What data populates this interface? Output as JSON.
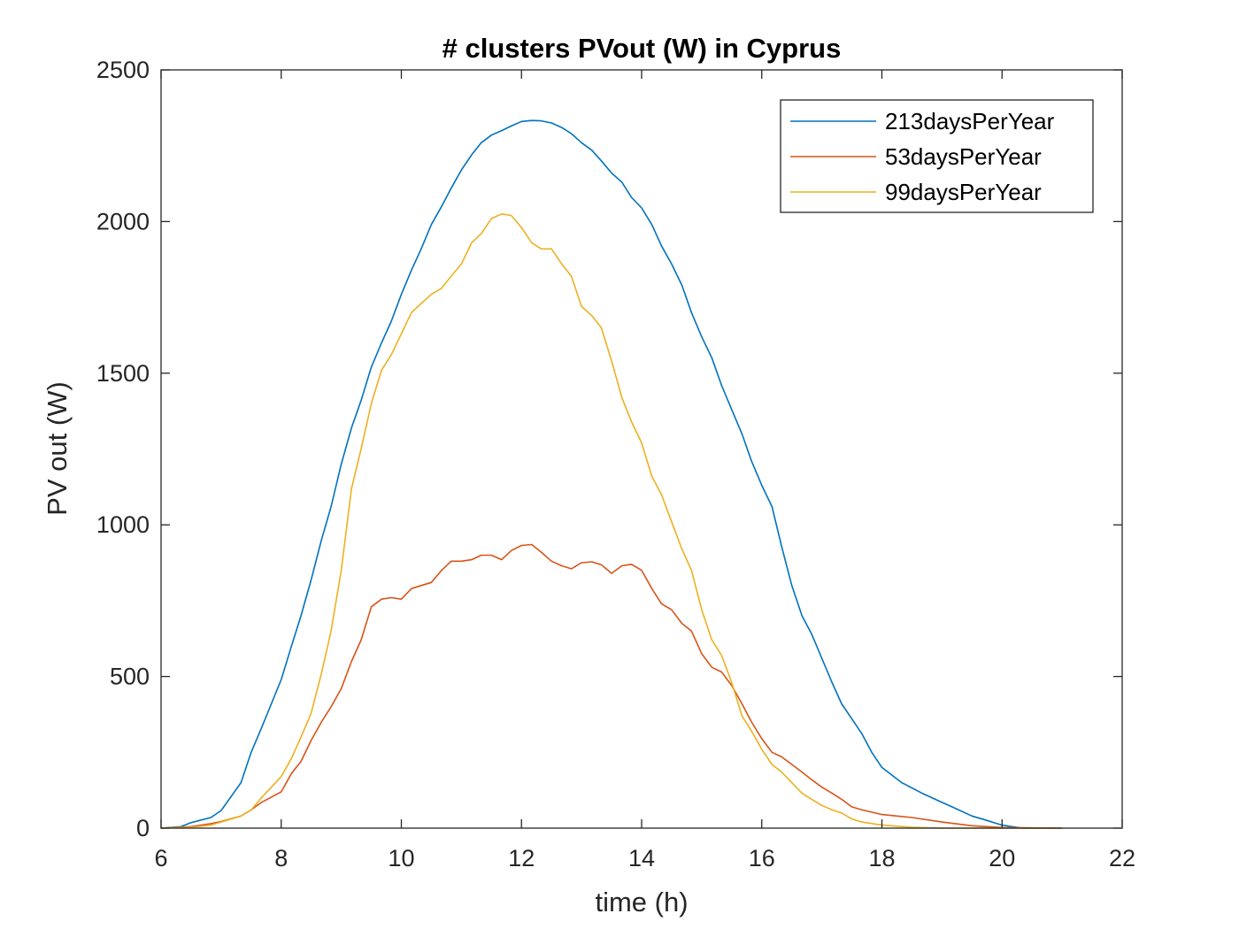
{
  "chart_data": {
    "type": "line",
    "title": "# clusters PVout (W) in Cyprus",
    "xlabel": "time (h)",
    "ylabel": "PV out (W)",
    "xlim": [
      6,
      22
    ],
    "ylim": [
      0,
      2500
    ],
    "xticks": [
      6,
      8,
      10,
      12,
      14,
      16,
      18,
      20,
      22
    ],
    "yticks": [
      0,
      500,
      1000,
      1500,
      2000,
      2500
    ],
    "grid": false,
    "legend_position": "top-right",
    "series": [
      {
        "name": "213daysPerYear",
        "color": "#0072BD",
        "points": [
          [
            6,
            0
          ],
          [
            6.33,
            5
          ],
          [
            6.5,
            18
          ],
          [
            6.83,
            35
          ],
          [
            7,
            58
          ],
          [
            7.33,
            150
          ],
          [
            7.5,
            250
          ],
          [
            7.67,
            330
          ],
          [
            8,
            490
          ],
          [
            8.17,
            600
          ],
          [
            8.33,
            700
          ],
          [
            8.5,
            820
          ],
          [
            8.67,
            950
          ],
          [
            8.83,
            1060
          ],
          [
            9,
            1200
          ],
          [
            9.17,
            1320
          ],
          [
            9.33,
            1410
          ],
          [
            9.5,
            1520
          ],
          [
            9.67,
            1600
          ],
          [
            9.83,
            1670
          ],
          [
            10,
            1760
          ],
          [
            10.17,
            1840
          ],
          [
            10.33,
            1910
          ],
          [
            10.5,
            1990
          ],
          [
            10.67,
            2050
          ],
          [
            10.83,
            2110
          ],
          [
            11,
            2170
          ],
          [
            11.17,
            2220
          ],
          [
            11.33,
            2260
          ],
          [
            11.5,
            2285
          ],
          [
            11.67,
            2300
          ],
          [
            11.83,
            2315
          ],
          [
            12,
            2330
          ],
          [
            12.17,
            2333
          ],
          [
            12.33,
            2332
          ],
          [
            12.5,
            2325
          ],
          [
            12.67,
            2310
          ],
          [
            12.83,
            2290
          ],
          [
            13,
            2260
          ],
          [
            13.17,
            2235
          ],
          [
            13.33,
            2200
          ],
          [
            13.5,
            2160
          ],
          [
            13.67,
            2130
          ],
          [
            13.83,
            2080
          ],
          [
            14,
            2045
          ],
          [
            14.17,
            1990
          ],
          [
            14.33,
            1920
          ],
          [
            14.5,
            1860
          ],
          [
            14.67,
            1790
          ],
          [
            14.83,
            1700
          ],
          [
            15,
            1620
          ],
          [
            15.17,
            1550
          ],
          [
            15.33,
            1460
          ],
          [
            15.5,
            1380
          ],
          [
            15.67,
            1300
          ],
          [
            15.83,
            1210
          ],
          [
            16,
            1130
          ],
          [
            16.17,
            1060
          ],
          [
            16.33,
            930
          ],
          [
            16.5,
            800
          ],
          [
            16.67,
            700
          ],
          [
            16.83,
            640
          ],
          [
            17,
            560
          ],
          [
            17.17,
            480
          ],
          [
            17.33,
            410
          ],
          [
            17.5,
            360
          ],
          [
            17.67,
            310
          ],
          [
            17.83,
            250
          ],
          [
            18,
            200
          ],
          [
            18.33,
            150
          ],
          [
            18.67,
            115
          ],
          [
            19,
            85
          ],
          [
            19.17,
            70
          ],
          [
            19.5,
            40
          ],
          [
            19.67,
            30
          ],
          [
            20,
            10
          ],
          [
            20.33,
            0
          ],
          [
            21,
            0
          ]
        ]
      },
      {
        "name": "53daysPerYear",
        "color": "#D95319",
        "points": [
          [
            6,
            0
          ],
          [
            6.5,
            5
          ],
          [
            6.83,
            15
          ],
          [
            7,
            22
          ],
          [
            7.33,
            40
          ],
          [
            7.5,
            60
          ],
          [
            7.67,
            85
          ],
          [
            8,
            120
          ],
          [
            8.17,
            180
          ],
          [
            8.33,
            220
          ],
          [
            8.5,
            290
          ],
          [
            8.67,
            350
          ],
          [
            8.83,
            400
          ],
          [
            9,
            460
          ],
          [
            9.17,
            550
          ],
          [
            9.33,
            620
          ],
          [
            9.5,
            730
          ],
          [
            9.67,
            755
          ],
          [
            9.83,
            760
          ],
          [
            10,
            755
          ],
          [
            10.17,
            790
          ],
          [
            10.33,
            800
          ],
          [
            10.5,
            810
          ],
          [
            10.67,
            850
          ],
          [
            10.83,
            880
          ],
          [
            11,
            880
          ],
          [
            11.17,
            885
          ],
          [
            11.33,
            900
          ],
          [
            11.5,
            900
          ],
          [
            11.67,
            885
          ],
          [
            11.83,
            915
          ],
          [
            12,
            932
          ],
          [
            12.17,
            935
          ],
          [
            12.33,
            910
          ],
          [
            12.5,
            880
          ],
          [
            12.67,
            865
          ],
          [
            12.83,
            855
          ],
          [
            13,
            875
          ],
          [
            13.17,
            878
          ],
          [
            13.33,
            868
          ],
          [
            13.5,
            840
          ],
          [
            13.67,
            865
          ],
          [
            13.83,
            870
          ],
          [
            14,
            850
          ],
          [
            14.17,
            790
          ],
          [
            14.33,
            740
          ],
          [
            14.5,
            720
          ],
          [
            14.67,
            675
          ],
          [
            14.83,
            650
          ],
          [
            15,
            575
          ],
          [
            15.17,
            530
          ],
          [
            15.33,
            515
          ],
          [
            15.5,
            470
          ],
          [
            15.67,
            410
          ],
          [
            15.83,
            350
          ],
          [
            16,
            295
          ],
          [
            16.17,
            250
          ],
          [
            16.33,
            235
          ],
          [
            16.5,
            210
          ],
          [
            16.67,
            185
          ],
          [
            16.83,
            160
          ],
          [
            17,
            135
          ],
          [
            17.17,
            115
          ],
          [
            17.33,
            95
          ],
          [
            17.5,
            70
          ],
          [
            17.67,
            60
          ],
          [
            18,
            45
          ],
          [
            18.5,
            35
          ],
          [
            19,
            20
          ],
          [
            19.5,
            8
          ],
          [
            20,
            2
          ],
          [
            21,
            0
          ]
        ]
      },
      {
        "name": "99daysPerYear",
        "color": "#EDB120",
        "points": [
          [
            6,
            0
          ],
          [
            6.5,
            3
          ],
          [
            6.83,
            10
          ],
          [
            7,
            20
          ],
          [
            7.33,
            40
          ],
          [
            7.5,
            60
          ],
          [
            7.67,
            100
          ],
          [
            8,
            170
          ],
          [
            8.17,
            230
          ],
          [
            8.33,
            300
          ],
          [
            8.5,
            380
          ],
          [
            8.67,
            510
          ],
          [
            8.83,
            650
          ],
          [
            9,
            850
          ],
          [
            9.17,
            1120
          ],
          [
            9.33,
            1250
          ],
          [
            9.5,
            1400
          ],
          [
            9.67,
            1510
          ],
          [
            9.83,
            1560
          ],
          [
            10,
            1630
          ],
          [
            10.17,
            1700
          ],
          [
            10.33,
            1730
          ],
          [
            10.5,
            1760
          ],
          [
            10.67,
            1780
          ],
          [
            10.83,
            1820
          ],
          [
            11,
            1860
          ],
          [
            11.17,
            1930
          ],
          [
            11.33,
            1960
          ],
          [
            11.5,
            2010
          ],
          [
            11.67,
            2025
          ],
          [
            11.83,
            2020
          ],
          [
            12,
            1980
          ],
          [
            12.17,
            1930
          ],
          [
            12.33,
            1910
          ],
          [
            12.5,
            1910
          ],
          [
            12.67,
            1860
          ],
          [
            12.83,
            1820
          ],
          [
            13,
            1720
          ],
          [
            13.17,
            1690
          ],
          [
            13.33,
            1650
          ],
          [
            13.5,
            1540
          ],
          [
            13.67,
            1420
          ],
          [
            13.83,
            1340
          ],
          [
            14,
            1270
          ],
          [
            14.17,
            1160
          ],
          [
            14.33,
            1100
          ],
          [
            14.5,
            1010
          ],
          [
            14.67,
            920
          ],
          [
            14.83,
            850
          ],
          [
            15,
            720
          ],
          [
            15.17,
            620
          ],
          [
            15.33,
            570
          ],
          [
            15.5,
            480
          ],
          [
            15.67,
            370
          ],
          [
            15.83,
            320
          ],
          [
            16,
            260
          ],
          [
            16.17,
            210
          ],
          [
            16.33,
            185
          ],
          [
            16.5,
            150
          ],
          [
            16.67,
            115
          ],
          [
            16.83,
            95
          ],
          [
            17,
            75
          ],
          [
            17.17,
            60
          ],
          [
            17.33,
            50
          ],
          [
            17.5,
            30
          ],
          [
            17.67,
            20
          ],
          [
            18,
            10
          ],
          [
            18.5,
            3
          ],
          [
            19,
            0
          ],
          [
            21,
            0
          ]
        ]
      }
    ]
  }
}
